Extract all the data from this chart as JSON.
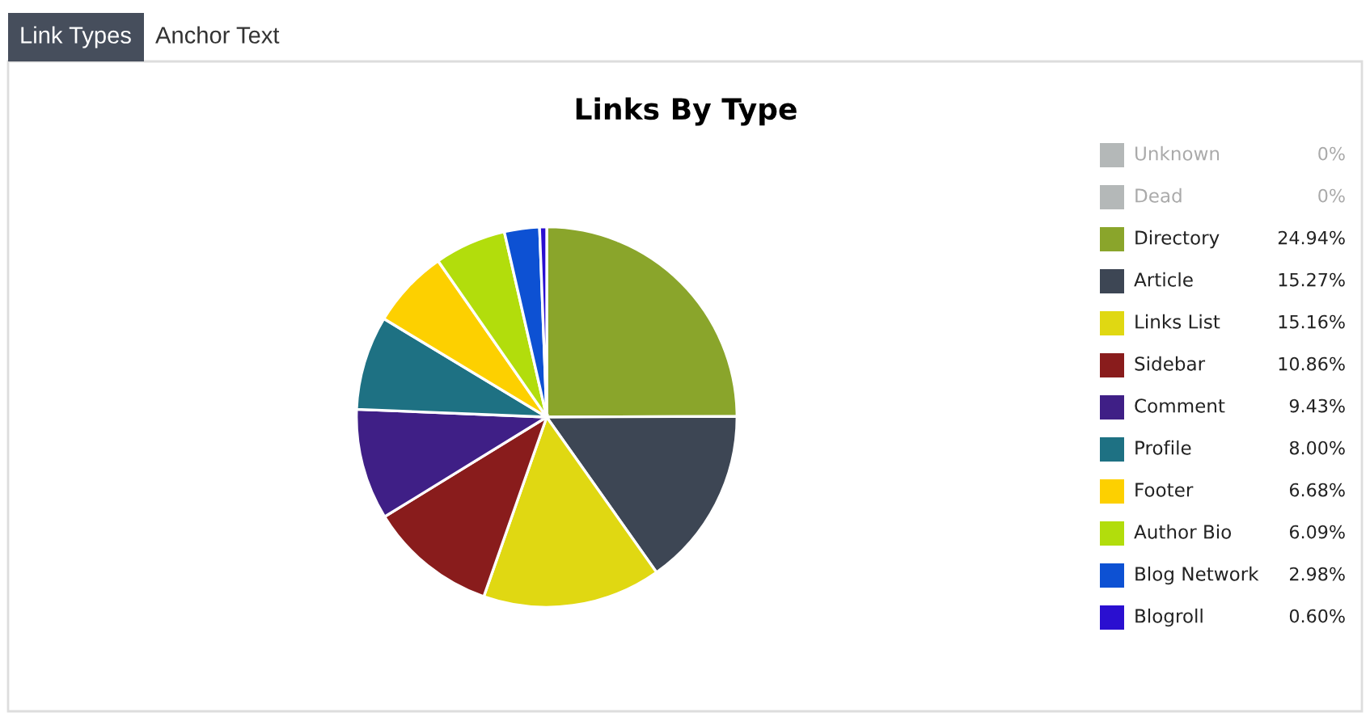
{
  "chart_data": {
    "type": "pie",
    "title": "Links By Type",
    "annotations": [
      "Link Types",
      "Anchor Text"
    ],
    "categories": [
      "Unknown",
      "Dead",
      "Directory",
      "Article",
      "Links List",
      "Sidebar",
      "Comment",
      "Profile",
      "Footer",
      "Author Bio",
      "Blog Network",
      "Blogroll"
    ],
    "values": [
      0,
      0,
      24.94,
      15.27,
      15.16,
      10.86,
      9.43,
      8.0,
      6.68,
      6.09,
      2.98,
      0.6
    ],
    "value_labels": [
      "0%",
      "0%",
      "24.94%",
      "15.27%",
      "15.16%",
      "10.86%",
      "9.43%",
      "8.00%",
      "6.68%",
      "6.09%",
      "2.98%",
      "0.60%"
    ],
    "colors": [
      "#b4b8b8",
      "#b4b8b8",
      "#8aa52b",
      "#3d4654",
      "#e0d812",
      "#891c1c",
      "#3f1f86",
      "#1e7183",
      "#fdd000",
      "#b2dd0c",
      "#0d51d3",
      "#2a0fd0"
    ],
    "legend": "right"
  }
}
